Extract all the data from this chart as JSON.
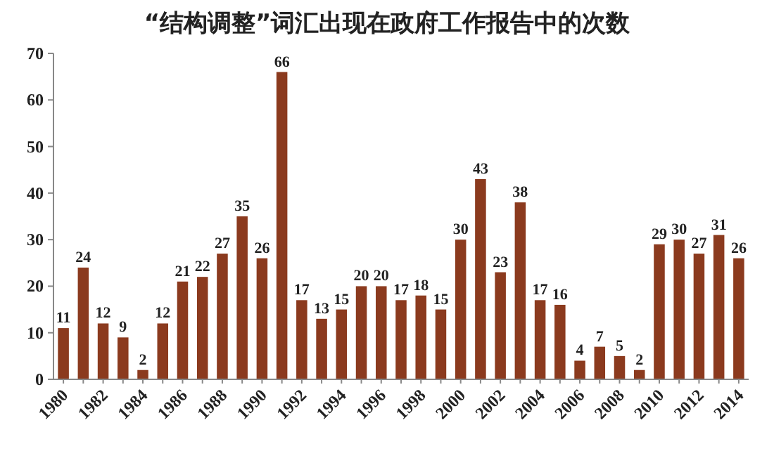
{
  "chart_data": {
    "type": "bar",
    "title": "“结构调整”词汇出现在政府工作报告中的次数",
    "categories": [
      "1980",
      null,
      "1982",
      null,
      "1984",
      null,
      "1986",
      null,
      "1988",
      null,
      "1990",
      null,
      "1992",
      null,
      "1994",
      null,
      "1996",
      null,
      "1998",
      null,
      "2000",
      null,
      "2002",
      null,
      "2004",
      null,
      "2006",
      null,
      "2008",
      null,
      "2010",
      null,
      "2012",
      null,
      "2014"
    ],
    "values": [
      11,
      24,
      12,
      9,
      2,
      12,
      21,
      22,
      27,
      35,
      26,
      66,
      17,
      13,
      15,
      20,
      20,
      17,
      18,
      15,
      30,
      43,
      23,
      38,
      17,
      16,
      4,
      7,
      5,
      2,
      29,
      30,
      27,
      31,
      26
    ],
    "color": "#8b3a1e",
    "ylim": [
      0,
      70
    ],
    "yticks": [
      0,
      10,
      20,
      30,
      40,
      50,
      60,
      70
    ],
    "data_labels": true,
    "grid": false
  }
}
